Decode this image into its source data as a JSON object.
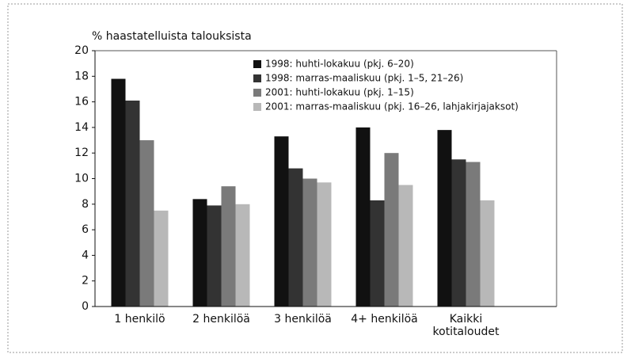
{
  "chart_data": {
    "type": "bar",
    "y_label": "% haastatelluista talouksista",
    "categories": [
      [
        "1 henkilö"
      ],
      [
        "2 henkilöä"
      ],
      [
        "3 henkilöä"
      ],
      [
        "4+ henkilöä"
      ],
      [
        "Kaikki",
        "kotitaloudet"
      ]
    ],
    "series": [
      {
        "name": "1998: huhti-lokakuu (pkj. 6–20)",
        "color": "#111111",
        "values": [
          17.8,
          8.4,
          13.3,
          14.0,
          13.8
        ]
      },
      {
        "name": "1998: marras-maaliskuu (pkj. 1–5, 21–26)",
        "color": "#333333",
        "values": [
          16.1,
          7.9,
          10.8,
          8.3,
          11.5
        ]
      },
      {
        "name": "2001: huhti-lokakuu (pkj. 1–15)",
        "color": "#7a7a7a",
        "values": [
          13.0,
          9.4,
          10.0,
          12.0,
          11.3
        ]
      },
      {
        "name": "2001: marras-maaliskuu (pkj. 16–26, lahjakirjajaksot)",
        "color": "#b8b8b8",
        "values": [
          7.5,
          8.0,
          9.7,
          9.5,
          8.3
        ]
      }
    ],
    "ylim": [
      0,
      20
    ],
    "yticks": [
      0,
      2,
      4,
      6,
      8,
      10,
      12,
      14,
      16,
      18,
      20
    ],
    "legend": "top-right"
  }
}
